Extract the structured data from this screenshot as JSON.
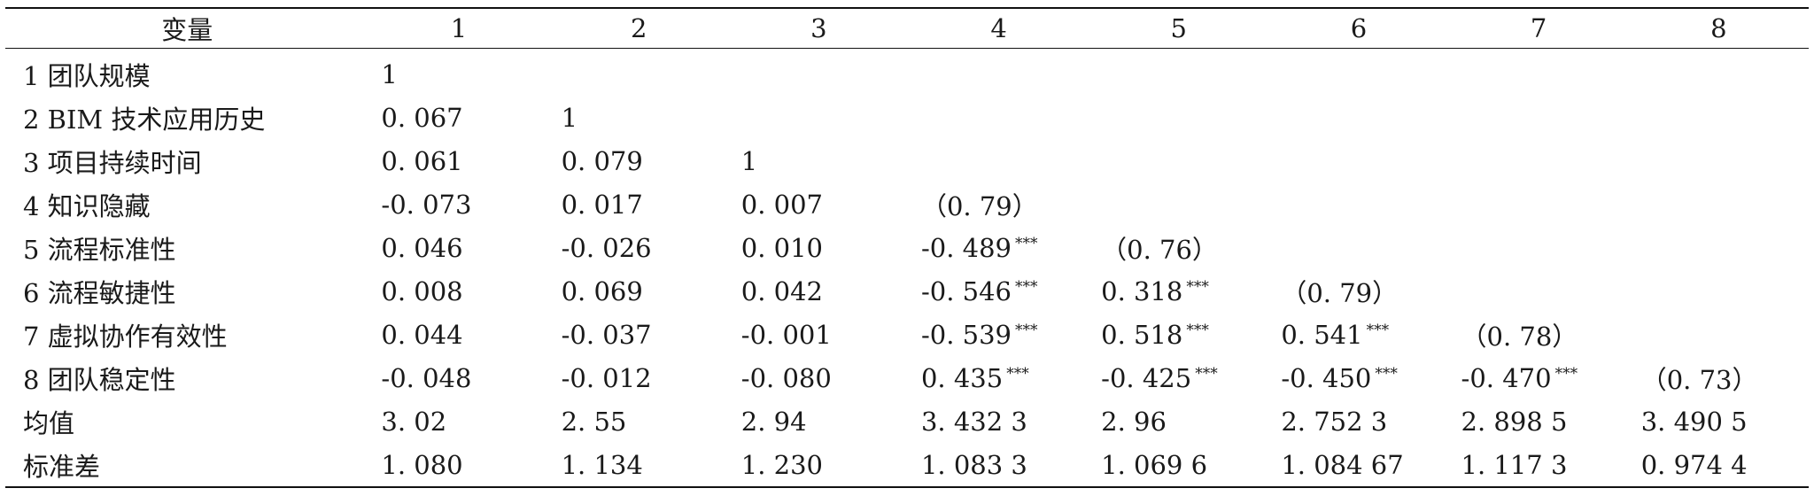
{
  "table": {
    "headers": [
      "变量",
      "1",
      "2",
      "3",
      "4",
      "5",
      "6",
      "7",
      "8"
    ],
    "rows": [
      {
        "label": "1 团队规模",
        "cells": [
          {
            "v": "1"
          },
          {
            "v": ""
          },
          {
            "v": ""
          },
          {
            "v": ""
          },
          {
            "v": ""
          },
          {
            "v": ""
          },
          {
            "v": ""
          },
          {
            "v": ""
          }
        ]
      },
      {
        "label": "2 BIM 技术应用历史",
        "cells": [
          {
            "v": "0. 067"
          },
          {
            "v": "1"
          },
          {
            "v": ""
          },
          {
            "v": ""
          },
          {
            "v": ""
          },
          {
            "v": ""
          },
          {
            "v": ""
          },
          {
            "v": ""
          }
        ]
      },
      {
        "label": "3 项目持续时间",
        "cells": [
          {
            "v": "0. 061"
          },
          {
            "v": "0. 079"
          },
          {
            "v": "1"
          },
          {
            "v": ""
          },
          {
            "v": ""
          },
          {
            "v": ""
          },
          {
            "v": ""
          },
          {
            "v": ""
          }
        ]
      },
      {
        "label": "4 知识隐藏",
        "cells": [
          {
            "v": "-0. 073"
          },
          {
            "v": "0. 017"
          },
          {
            "v": "0. 007"
          },
          {
            "v": "（0. 79）"
          },
          {
            "v": ""
          },
          {
            "v": ""
          },
          {
            "v": ""
          },
          {
            "v": ""
          }
        ]
      },
      {
        "label": "5 流程标准性",
        "cells": [
          {
            "v": "0. 046"
          },
          {
            "v": "-0. 026"
          },
          {
            "v": "0. 010"
          },
          {
            "v": "-0. 489",
            "s": "***"
          },
          {
            "v": "（0. 76）"
          },
          {
            "v": ""
          },
          {
            "v": ""
          },
          {
            "v": ""
          }
        ]
      },
      {
        "label": "6 流程敏捷性",
        "cells": [
          {
            "v": "0. 008"
          },
          {
            "v": "0. 069"
          },
          {
            "v": "0. 042"
          },
          {
            "v": "-0. 546",
            "s": "***"
          },
          {
            "v": "0. 318",
            "s": "***"
          },
          {
            "v": "（0. 79）"
          },
          {
            "v": ""
          },
          {
            "v": ""
          }
        ]
      },
      {
        "label": "7 虚拟协作有效性",
        "cells": [
          {
            "v": "0. 044"
          },
          {
            "v": "-0. 037"
          },
          {
            "v": "-0. 001"
          },
          {
            "v": "-0. 539",
            "s": "***"
          },
          {
            "v": "0. 518",
            "s": "***"
          },
          {
            "v": "0. 541",
            "s": "***"
          },
          {
            "v": "（0. 78）"
          },
          {
            "v": ""
          }
        ]
      },
      {
        "label": "8 团队稳定性",
        "cells": [
          {
            "v": "-0. 048"
          },
          {
            "v": "-0. 012"
          },
          {
            "v": "-0. 080"
          },
          {
            "v": "0. 435",
            "s": "***"
          },
          {
            "v": "-0. 425",
            "s": "***"
          },
          {
            "v": "-0. 450",
            "s": "***"
          },
          {
            "v": "-0. 470",
            "s": "***"
          },
          {
            "v": "（0. 73）"
          }
        ]
      },
      {
        "label": "均值",
        "cells": [
          {
            "v": "3. 02"
          },
          {
            "v": "2. 55"
          },
          {
            "v": "2. 94"
          },
          {
            "v": "3. 432 3"
          },
          {
            "v": "2. 96"
          },
          {
            "v": "2. 752 3"
          },
          {
            "v": "2. 898 5"
          },
          {
            "v": "3. 490 5"
          }
        ]
      },
      {
        "label": "标准差",
        "cells": [
          {
            "v": "1. 080"
          },
          {
            "v": "1. 134"
          },
          {
            "v": "1. 230"
          },
          {
            "v": "1. 083 3"
          },
          {
            "v": "1. 069 6"
          },
          {
            "v": "1. 084 67"
          },
          {
            "v": "1. 117 3"
          },
          {
            "v": "0. 974 4"
          }
        ]
      }
    ]
  }
}
